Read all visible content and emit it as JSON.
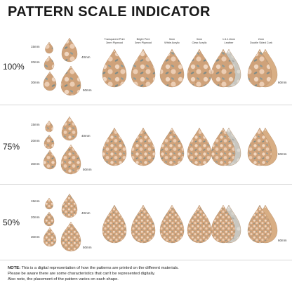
{
  "title": "PATTERN SCALE INDICATOR",
  "materials": [
    {
      "line1": "Transparent Print",
      "line2": "3mm Plywood"
    },
    {
      "line1": "Bright Print",
      "line2": "3mm Plywood"
    },
    {
      "line1": "3mm",
      "line2": "White Acrylic"
    },
    {
      "line1": "3mm",
      "line2": "Clear Acrylic"
    },
    {
      "line1": "1.6-1.8mm",
      "line2": "Leather"
    },
    {
      "line1": "2mm",
      "line2": "Double Sided Cork"
    }
  ],
  "rows": [
    {
      "scale": "100%",
      "sizes": {
        "s15": "15mm",
        "s20": "20mm",
        "s30": "30mm",
        "s40": "40mm",
        "s50": "50mm"
      },
      "side": "60mm"
    },
    {
      "scale": "75%",
      "sizes": {
        "s15": "15mm",
        "s20": "20mm",
        "s30": "30mm",
        "s40": "40mm",
        "s50": "50mm"
      },
      "side": "60mm"
    },
    {
      "scale": "50%",
      "sizes": {
        "s15": "15mm",
        "s20": "20mm",
        "s30": "30mm",
        "s40": "40mm",
        "s50": "50mm"
      },
      "side": "60mm"
    }
  ],
  "note": {
    "label": "NOTE:",
    "text1": "This is a digital representation of how the patterns are printed on the different materials.",
    "text2": "Please be aware there are some characteristics that can't be represented digitally.",
    "text3": "Also note, the placement of the pattern varies on each shape."
  },
  "colors": {
    "cork": "#cfa27a",
    "cork_dark": "#b98a62",
    "leaf": "#8e9a96",
    "petal": "#f3dcc8",
    "leather": "#c9c7c0"
  }
}
